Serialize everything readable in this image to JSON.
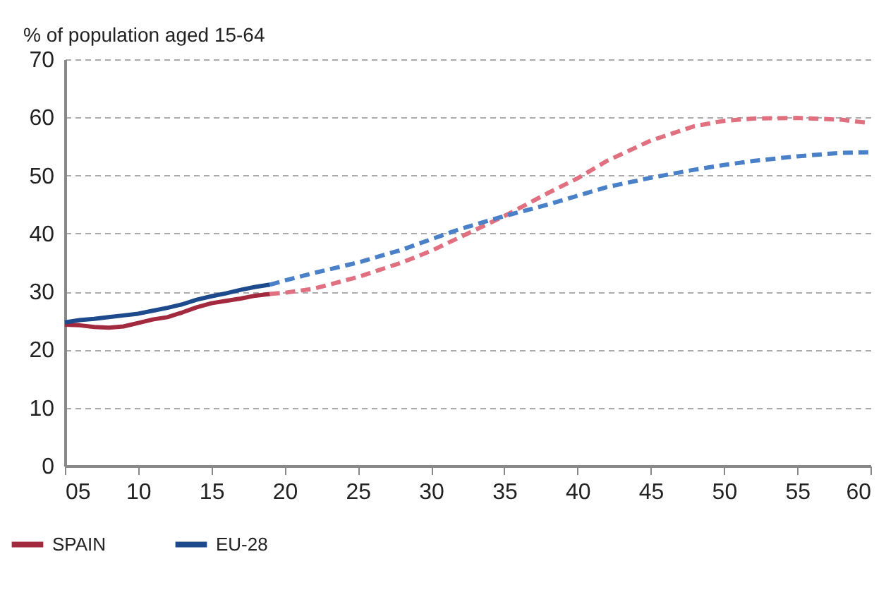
{
  "chart_data": {
    "type": "line",
    "ylabel": "% of population aged 15-64",
    "xlim": [
      5,
      60
    ],
    "xticks": [
      {
        "value": 5,
        "label": "05"
      },
      10,
      15,
      20,
      25,
      30,
      35,
      40,
      45,
      50,
      55,
      60
    ],
    "ylim": [
      0,
      70
    ],
    "yticks": [
      0,
      10,
      20,
      30,
      40,
      50,
      60,
      70
    ],
    "grid": "y",
    "legend": "bottom left",
    "series": [
      {
        "name": "SPAIN",
        "color": "#a32a3e",
        "line_style": "solid",
        "x": [
          5,
          6,
          7,
          8,
          9,
          10,
          11,
          12,
          13,
          14,
          15,
          16,
          17,
          18,
          19
        ],
        "values": [
          24.3,
          24.2,
          23.9,
          23.8,
          24,
          24.6,
          25.2,
          25.6,
          26.4,
          27.3,
          28,
          28.4,
          28.8,
          29.3,
          29.6
        ]
      },
      {
        "name": "EU-28",
        "color": "#1d4a8c",
        "line_style": "solid",
        "x": [
          5,
          6,
          7,
          8,
          9,
          10,
          11,
          12,
          13,
          14,
          15,
          16,
          17,
          18,
          19
        ],
        "values": [
          24.7,
          25.1,
          25.3,
          25.6,
          25.9,
          26.2,
          26.7,
          27.2,
          27.8,
          28.6,
          29.2,
          29.7,
          30.3,
          30.8,
          31.2
        ]
      },
      {
        "color": "#e07080",
        "line_style": "dashed",
        "x": [
          19,
          20,
          22,
          25,
          28,
          30,
          32,
          35,
          38,
          40,
          42,
          45,
          48,
          50,
          52,
          55,
          58,
          60
        ],
        "values": [
          29.6,
          29.8,
          30.5,
          32.5,
          35,
          37,
          39.4,
          43,
          47,
          49.5,
          52.5,
          56,
          58.5,
          59.4,
          59.8,
          59.9,
          59.6,
          59
        ]
      },
      {
        "color": "#4a80c8",
        "line_style": "dashed",
        "x": [
          19,
          20,
          22,
          25,
          28,
          30,
          32,
          35,
          38,
          40,
          42,
          45,
          48,
          50,
          52,
          55,
          58,
          60
        ],
        "values": [
          31.2,
          31.9,
          33.2,
          35,
          37.2,
          39,
          40.8,
          43,
          45,
          46.5,
          48,
          49.6,
          51,
          51.8,
          52.5,
          53.3,
          53.9,
          54
        ]
      }
    ]
  }
}
